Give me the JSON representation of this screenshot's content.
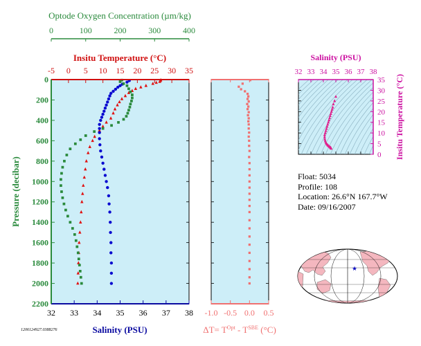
{
  "chart_data": [
    {
      "type": "scatter",
      "panel": "main-profile",
      "ylabel": "Pressure (decibar)",
      "ylim": [
        2200,
        0
      ],
      "yticks": [
        0,
        200,
        400,
        600,
        800,
        1000,
        1200,
        1400,
        1600,
        1800,
        2000,
        2200
      ],
      "axes": {
        "oxygen": {
          "label": "Optode Oxygen Concentration (µm/kg)",
          "xlim": [
            0,
            400
          ],
          "ticks": [
            0,
            100,
            200,
            300,
            400
          ],
          "color": "#2a8a3c"
        },
        "temperature": {
          "label": "Insitu Temperature (°C)",
          "xlim": [
            -5,
            35
          ],
          "ticks": [
            -5,
            0,
            5,
            10,
            15,
            20,
            25,
            30,
            35
          ],
          "color": "#d01010"
        },
        "salinity": {
          "label": "Salinity (PSU)",
          "xlim": [
            32,
            38
          ],
          "ticks": [
            32,
            33,
            34,
            35,
            36,
            37,
            38
          ],
          "color": "#0a0aa0"
        }
      },
      "series": [
        {
          "axis": "temperature",
          "marker": "triangle",
          "color": "#e01010",
          "points": [
            [
              26.8,
              5
            ],
            [
              26.7,
              10
            ],
            [
              26.5,
              20
            ],
            [
              25.5,
              30
            ],
            [
              24.5,
              40
            ],
            [
              22.5,
              60
            ],
            [
              21.0,
              75
            ],
            [
              19.5,
              90
            ],
            [
              18.5,
              110
            ],
            [
              17.5,
              130
            ],
            [
              16.5,
              160
            ],
            [
              15.5,
              190
            ],
            [
              14.8,
              220
            ],
            [
              14.2,
              250
            ],
            [
              13.5,
              290
            ],
            [
              13.0,
              330
            ],
            [
              12.3,
              380
            ],
            [
              11.0,
              420
            ],
            [
              10.0,
              460
            ],
            [
              9.0,
              500
            ],
            [
              7.6,
              560
            ],
            [
              7.0,
              600
            ],
            [
              6.2,
              660
            ],
            [
              5.7,
              720
            ],
            [
              5.2,
              800
            ],
            [
              4.9,
              880
            ],
            [
              4.6,
              960
            ],
            [
              4.3,
              1040
            ],
            [
              4.1,
              1120
            ],
            [
              3.9,
              1200
            ],
            [
              3.7,
              1300
            ],
            [
              3.5,
              1400
            ],
            [
              3.3,
              1500
            ],
            [
              3.1,
              1600
            ],
            [
              3.0,
              1700
            ],
            [
              2.9,
              1800
            ],
            [
              2.8,
              1900
            ],
            [
              2.7,
              2000
            ]
          ]
        },
        {
          "axis": "salinity",
          "marker": "circle",
          "color": "#0a0ad0",
          "points": [
            [
              35.4,
              10
            ],
            [
              35.3,
              25
            ],
            [
              35.1,
              45
            ],
            [
              35.0,
              60
            ],
            [
              34.9,
              75
            ],
            [
              34.8,
              95
            ],
            [
              34.7,
              115
            ],
            [
              34.6,
              135
            ],
            [
              34.55,
              160
            ],
            [
              34.5,
              190
            ],
            [
              34.45,
              220
            ],
            [
              34.4,
              250
            ],
            [
              34.35,
              280
            ],
            [
              34.3,
              310
            ],
            [
              34.25,
              340
            ],
            [
              34.2,
              370
            ],
            [
              34.15,
              400
            ],
            [
              34.1,
              440
            ],
            [
              34.1,
              480
            ],
            [
              34.1,
              520
            ],
            [
              34.1,
              580
            ],
            [
              34.12,
              640
            ],
            [
              34.15,
              700
            ],
            [
              34.2,
              760
            ],
            [
              34.25,
              820
            ],
            [
              34.3,
              880
            ],
            [
              34.35,
              940
            ],
            [
              34.4,
              1000
            ],
            [
              34.45,
              1060
            ],
            [
              34.5,
              1140
            ],
            [
              34.52,
              1220
            ],
            [
              34.55,
              1300
            ],
            [
              34.57,
              1400
            ],
            [
              34.58,
              1500
            ],
            [
              34.6,
              1600
            ],
            [
              34.6,
              1700
            ],
            [
              34.62,
              1800
            ],
            [
              34.62,
              1900
            ],
            [
              34.62,
              2000
            ]
          ]
        },
        {
          "axis": "oxygen",
          "marker": "square",
          "color": "#2a8a3c",
          "points": [
            [
              205,
              5
            ],
            [
              200,
              20
            ],
            [
              210,
              40
            ],
            [
              220,
              60
            ],
            [
              225,
              90
            ],
            [
              230,
              120
            ],
            [
              235,
              150
            ],
            [
              235,
              180
            ],
            [
              233,
              210
            ],
            [
              230,
              240
            ],
            [
              228,
              270
            ],
            [
              225,
              300
            ],
            [
              222,
              330
            ],
            [
              218,
              360
            ],
            [
              210,
              390
            ],
            [
              195,
              420
            ],
            [
              175,
              450
            ],
            [
              150,
              480
            ],
            [
              125,
              510
            ],
            [
              100,
              550
            ],
            [
              85,
              590
            ],
            [
              70,
              630
            ],
            [
              55,
              680
            ],
            [
              45,
              740
            ],
            [
              38,
              800
            ],
            [
              33,
              860
            ],
            [
              30,
              920
            ],
            [
              28,
              980
            ],
            [
              28,
              1040
            ],
            [
              30,
              1100
            ],
            [
              33,
              1160
            ],
            [
              37,
              1220
            ],
            [
              42,
              1280
            ],
            [
              48,
              1340
            ],
            [
              55,
              1400
            ],
            [
              62,
              1460
            ],
            [
              68,
              1520
            ],
            [
              72,
              1580
            ],
            [
              75,
              1640
            ],
            [
              78,
              1700
            ],
            [
              80,
              1760
            ],
            [
              82,
              1820
            ],
            [
              84,
              1880
            ],
            [
              86,
              1940
            ],
            [
              88,
              2000
            ]
          ]
        }
      ]
    },
    {
      "type": "scatter",
      "panel": "delta-t",
      "xlabel": "ΔT= T^Opt - T^SBE (°C)",
      "xlabel_parts": {
        "prefix": "ΔT= T",
        "sup1": "Opt",
        "mid": " - T",
        "sup2": "SBE",
        "suffix": " (°C)"
      },
      "xlim": [
        -1.0,
        0.5
      ],
      "xticks": [
        "-1.0",
        "-0.5",
        "0.0",
        "0.5"
      ],
      "ylim": [
        2200,
        0
      ],
      "series": [
        {
          "marker": "square",
          "color": "#f07070",
          "points": [
            [
              0.02,
              5
            ],
            [
              -0.18,
              40
            ],
            [
              -0.28,
              70
            ],
            [
              -0.22,
              95
            ],
            [
              -0.12,
              115
            ],
            [
              -0.05,
              140
            ],
            [
              -0.03,
              165
            ],
            [
              -0.05,
              190
            ],
            [
              -0.02,
              215
            ],
            [
              -0.06,
              240
            ],
            [
              -0.03,
              265
            ],
            [
              -0.05,
              290
            ],
            [
              -0.02,
              320
            ],
            [
              -0.04,
              350
            ],
            [
              -0.02,
              380
            ],
            [
              -0.03,
              410
            ],
            [
              -0.02,
              440
            ],
            [
              -0.02,
              480
            ],
            [
              -0.01,
              520
            ],
            [
              -0.02,
              560
            ],
            [
              -0.01,
              600
            ],
            [
              -0.01,
              650
            ],
            [
              0.0,
              700
            ],
            [
              -0.01,
              760
            ],
            [
              0.0,
              820
            ],
            [
              0.0,
              880
            ],
            [
              0.0,
              940
            ],
            [
              0.0,
              1000
            ],
            [
              0.0,
              1060
            ],
            [
              0.0,
              1120
            ],
            [
              0.0,
              1180
            ],
            [
              0.0,
              1240
            ],
            [
              0.0,
              1300
            ],
            [
              0.0,
              1380
            ],
            [
              0.0,
              1460
            ],
            [
              0.0,
              1540
            ],
            [
              0.0,
              1620
            ],
            [
              0.0,
              1700
            ],
            [
              0.0,
              1780
            ],
            [
              0.0,
              1860
            ],
            [
              0.0,
              1940
            ],
            [
              0.0,
              2000
            ]
          ]
        }
      ]
    },
    {
      "type": "scatter",
      "panel": "ts-diagram",
      "xlabel": "Salinity (PSU)",
      "ylabel": "Insitu Temperature (°C)",
      "xlim": [
        32,
        38
      ],
      "ylim": [
        0,
        35
      ],
      "xticks": [
        32,
        33,
        34,
        35,
        36,
        37,
        38
      ],
      "yticks": [
        0,
        5,
        10,
        15,
        20,
        25,
        30,
        35
      ],
      "color": "#cc10a0",
      "series": [
        {
          "marker": "triangle",
          "color": "#e0208c",
          "points": [
            [
              35.0,
              27
            ],
            [
              34.9,
              25
            ],
            [
              34.8,
              23.5
            ],
            [
              34.75,
              22
            ],
            [
              34.7,
              21
            ],
            [
              34.65,
              20
            ],
            [
              34.6,
              19
            ],
            [
              34.55,
              18
            ],
            [
              34.5,
              17
            ],
            [
              34.45,
              16
            ],
            [
              34.4,
              15
            ],
            [
              34.35,
              14
            ],
            [
              34.3,
              13
            ],
            [
              34.25,
              12
            ],
            [
              34.2,
              11
            ],
            [
              34.15,
              10
            ],
            [
              34.1,
              9
            ],
            [
              34.1,
              8
            ],
            [
              34.12,
              7
            ],
            [
              34.15,
              6.2
            ],
            [
              34.2,
              5.5
            ],
            [
              34.25,
              5.0
            ],
            [
              34.3,
              4.6
            ],
            [
              34.35,
              4.3
            ],
            [
              34.4,
              4.0
            ],
            [
              34.45,
              3.7
            ],
            [
              34.5,
              3.5
            ],
            [
              34.55,
              3.3
            ],
            [
              34.58,
              3.1
            ],
            [
              34.6,
              3.0
            ],
            [
              34.62,
              2.8
            ],
            [
              34.62,
              2.7
            ]
          ]
        }
      ]
    }
  ],
  "info": {
    "float": "Float:  5034",
    "profile": "Profile:  108",
    "location": "Location:  26.6°N  167.7°W",
    "date": "Date:  09/16/2007"
  },
  "footer_id": "1206124927.0388276",
  "colors": {
    "panel_bg": "#cdeef8",
    "land": "#f4b7bf",
    "map_ocean": "#ffffff",
    "marker": "#1010c0"
  }
}
